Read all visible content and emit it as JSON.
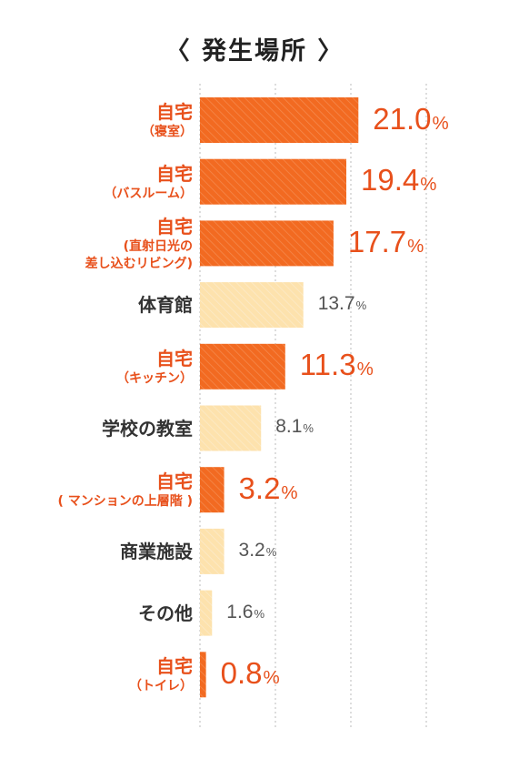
{
  "chart_data": {
    "type": "bar",
    "title": "〈 発生場所 〉",
    "xlim": [
      0,
      30
    ],
    "categories": [
      {
        "main": "自宅",
        "sub": "（寝室）",
        "highlight": true
      },
      {
        "main": "自宅",
        "sub": "（バスルーム）",
        "highlight": true
      },
      {
        "main": "自宅",
        "sub": "(直射日光の\n差し込むリビング)",
        "highlight": true
      },
      {
        "main": "体育館",
        "sub": "",
        "highlight": false
      },
      {
        "main": "自宅",
        "sub": "（キッチン）",
        "highlight": true
      },
      {
        "main": "学校の教室",
        "sub": "",
        "highlight": false
      },
      {
        "main": "自宅",
        "sub": "( マンションの上層階 )",
        "highlight": true
      },
      {
        "main": "商業施設",
        "sub": "",
        "highlight": false
      },
      {
        "main": "その他",
        "sub": "",
        "highlight": false
      },
      {
        "main": "自宅",
        "sub": "（トイレ）",
        "highlight": true
      }
    ],
    "values": [
      21.0,
      19.4,
      17.7,
      13.7,
      11.3,
      8.1,
      3.2,
      3.2,
      1.6,
      0.8
    ],
    "value_labels": [
      "21.0",
      "19.4",
      "17.7",
      "13.7",
      "11.3",
      "8.1",
      "3.2",
      "3.2",
      "1.6",
      "0.8"
    ],
    "unit": "%",
    "grid": true,
    "colors": {
      "highlight_bar": "#f26a21",
      "normal_bar": "#fde2ad",
      "highlight_text": "#e8501b",
      "normal_text": "#333333",
      "value_normal_text": "#555555",
      "grid": "#bbbbbb"
    }
  }
}
